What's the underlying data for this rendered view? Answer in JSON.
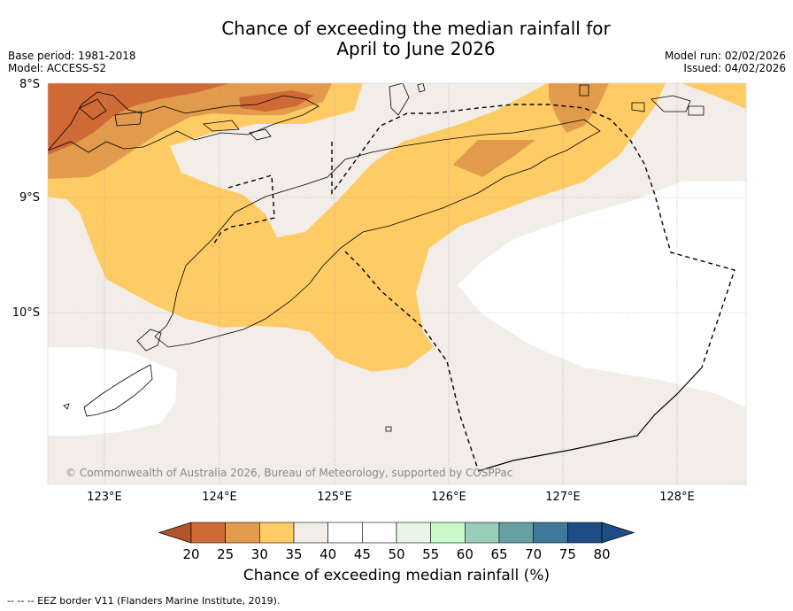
{
  "header": {
    "title_line1": "Chance of exceeding the median rainfall for",
    "title_line2": "April to June 2026",
    "base_period": "Base period: 1981-2018",
    "model": "Model: ACCESS-S2",
    "model_run": "Model run: 02/02/2026",
    "issued": "Issued: 04/02/2026"
  },
  "map": {
    "lat_labels": [
      "8°S",
      "9°S",
      "10°S"
    ],
    "lon_labels": [
      "123°E",
      "124°E",
      "125°E",
      "126°E",
      "127°E",
      "128°E"
    ],
    "copyright": "© Commonwealth of Australia 2026, Bureau of Meteorology, supported by COSPPac"
  },
  "colorbar": {
    "ticks": [
      "20",
      "25",
      "30",
      "35",
      "40",
      "45",
      "50",
      "55",
      "60",
      "65",
      "70",
      "75",
      "80"
    ],
    "colors": [
      "#b5532b",
      "#cf6a37",
      "#e29a4c",
      "#fecb65",
      "#f2ede7",
      "#ffffff",
      "#ffffff",
      "#e9f5e6",
      "#c8f9c7",
      "#99cdb9",
      "#689fa2",
      "#3f7a9a",
      "#1e4d86"
    ],
    "title": "Chance of exceeding median rainfall (%)"
  },
  "legend": {
    "eez": "--  --  -- EEZ border V11 (Flanders Marine Institute, 2019)."
  }
}
